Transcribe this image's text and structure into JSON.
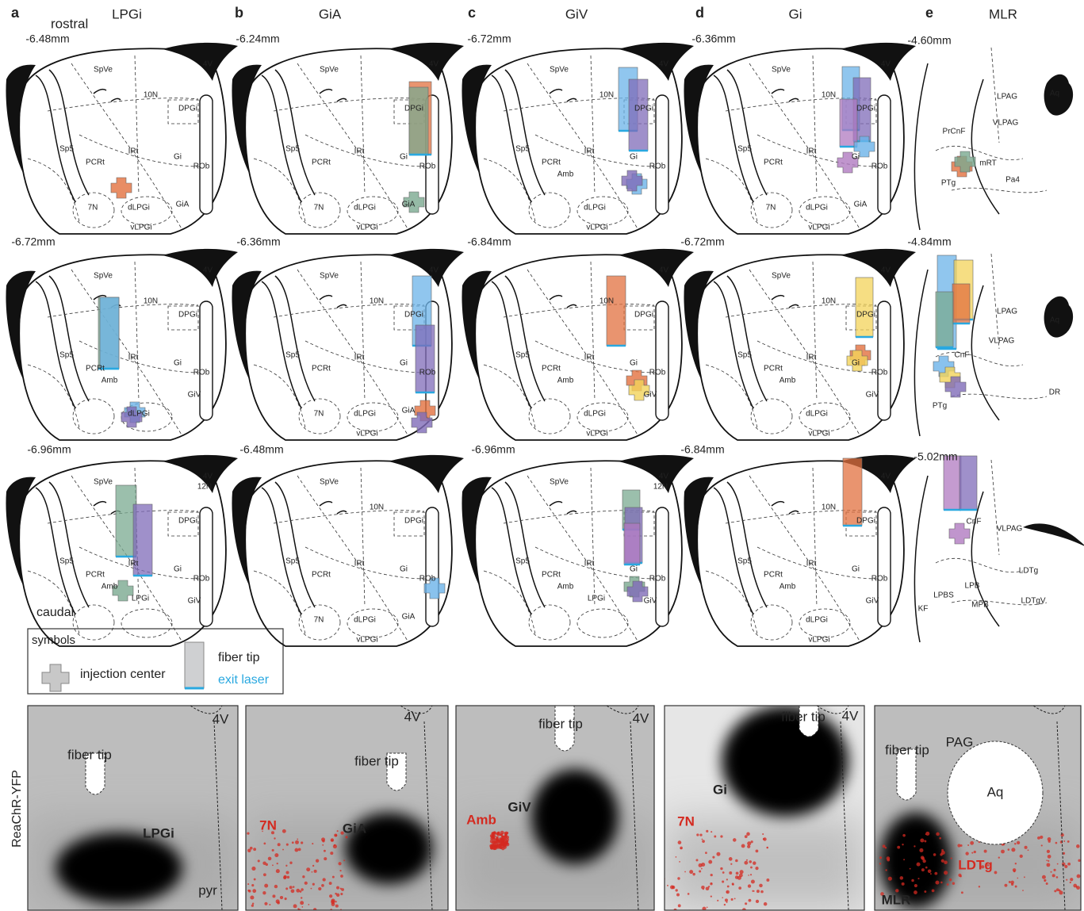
{
  "panels": [
    {
      "letter": "a",
      "title": "LPGi",
      "sections": [
        {
          "depth": "-6.48mm",
          "labels": [
            "SpVe",
            "10N",
            "DPGi",
            "Sp5",
            "PCRt",
            "IRt",
            "Gi",
            "ROb",
            "7N",
            "dLPGi",
            "vLPGi",
            "GiA",
            "4V"
          ]
        },
        {
          "depth": "-6.72mm",
          "labels": [
            "SpVe",
            "10N",
            "DPGi",
            "Sp5",
            "PCRt",
            "IRt",
            "Gi",
            "ROb",
            "dLPGi",
            "4V",
            "Amb",
            "GiV"
          ]
        },
        {
          "depth": "-6.96mm",
          "labels": [
            "SpVe",
            "12N",
            "DPGi",
            "Sp5",
            "PCRt",
            "IRt",
            "Gi",
            "ROb",
            "Amb",
            "GiV",
            "LPGi",
            "4V"
          ]
        }
      ]
    },
    {
      "letter": "b",
      "title": "GiA",
      "sections": [
        {
          "depth": "-6.24mm",
          "labels": [
            "SpVe",
            "DPGi",
            "Sp5",
            "PCRt",
            "IRt",
            "Gi",
            "ROb",
            "7N",
            "dLPGi",
            "vLPGi",
            "GiA",
            "4V"
          ]
        },
        {
          "depth": "-6.36mm",
          "labels": [
            "SpVe",
            "10N",
            "DPGi",
            "Sp5",
            "PCRt",
            "IRt",
            "Gi",
            "ROb",
            "7N",
            "dLPGi",
            "vLPGi",
            "GiA",
            "4V"
          ]
        },
        {
          "depth": "-6.48mm",
          "labels": [
            "SpVe",
            "10N",
            "DPGi",
            "Sp5",
            "PCRt",
            "IRt",
            "Gi",
            "ROb",
            "7N",
            "dLPGi",
            "vLPGi",
            "GiA"
          ]
        }
      ]
    },
    {
      "letter": "c",
      "title": "GiV",
      "sections": [
        {
          "depth": "-6.72mm",
          "labels": [
            "SpVe",
            "10N",
            "DPGi",
            "Sp5",
            "PCRt",
            "IRt",
            "Gi",
            "ROb",
            "Amb",
            "dLPGi",
            "vLPGi",
            "4V"
          ]
        },
        {
          "depth": "-6.84mm",
          "labels": [
            "10N",
            "DPGi",
            "Sp5",
            "PCRt",
            "IRt",
            "Gi",
            "ROb",
            "Amb",
            "dLPGi",
            "vLPGi",
            "GiV",
            "4V"
          ]
        },
        {
          "depth": "-6.96mm",
          "labels": [
            "SpVe",
            "12N",
            "Sp5",
            "PCRt",
            "IRt",
            "Gi",
            "ROb",
            "Amb",
            "LPGi",
            "GiV",
            "4V"
          ]
        }
      ]
    },
    {
      "letter": "d",
      "title": "Gi",
      "sections": [
        {
          "depth": "-6.36mm",
          "labels": [
            "SpVe",
            "10N",
            "DPGi",
            "Sp5",
            "PCRt",
            "IRt",
            "Gi",
            "ROb",
            "7N",
            "dLPGi",
            "vLPGi",
            "GiA",
            "4V"
          ]
        },
        {
          "depth": "-6.72mm",
          "labels": [
            "SpVe",
            "10N",
            "DPGi",
            "Sp5",
            "PCRt",
            "IRt",
            "Gi",
            "ROb",
            "Amb",
            "dLPGi",
            "vLPGi",
            "GiV",
            "4V"
          ]
        },
        {
          "depth": "-6.84mm",
          "labels": [
            "10N",
            "DPGi",
            "Sp5",
            "PCRt",
            "IRt",
            "Gi",
            "ROb",
            "Amb",
            "dLPGi",
            "vLPGi",
            "GiV",
            "4V"
          ]
        }
      ]
    },
    {
      "letter": "e",
      "title": "MLR",
      "sections": [
        {
          "depth": "-4.60mm",
          "labels": [
            "Aq",
            "LPAG",
            "VLPAG",
            "PrCnF",
            "mRT",
            "PTg",
            "Pa4"
          ]
        },
        {
          "depth": "-4.84mm",
          "labels": [
            "Aq",
            "LPAG",
            "VLPAG",
            "CnF",
            "PTg",
            "DR"
          ]
        },
        {
          "depth": "-5.02mm",
          "labels": [
            "CnF",
            "VLPAG",
            "LPBS",
            "LPB",
            "LDTg",
            "MPB",
            "LDTgV",
            "KF"
          ]
        }
      ]
    }
  ],
  "orientation": {
    "top": "rostral",
    "bottom": "caudal"
  },
  "legend": {
    "title": "symbols",
    "injection": "injection center",
    "fiber": "fiber tip",
    "laser": "exit laser"
  },
  "photos": {
    "stain": "ReaChR-YFP",
    "panels": [
      {
        "labels": [
          {
            "text": "4V"
          },
          {
            "text": "fiber tip"
          },
          {
            "text": "LPGi"
          },
          {
            "text": "pyr"
          }
        ]
      },
      {
        "labels": [
          {
            "text": "4V"
          },
          {
            "text": "fiber tip"
          },
          {
            "text": "7N",
            "color": "#d42a20"
          },
          {
            "text": "GiA"
          }
        ]
      },
      {
        "labels": [
          {
            "text": "fiber tip"
          },
          {
            "text": "4V"
          },
          {
            "text": "Amb",
            "color": "#d42a20"
          },
          {
            "text": "GiV"
          }
        ]
      },
      {
        "labels": [
          {
            "text": "fiber tip"
          },
          {
            "text": "4V"
          },
          {
            "text": "Gi"
          },
          {
            "text": "7N",
            "color": "#d42a20"
          }
        ]
      },
      {
        "labels": [
          {
            "text": "fiber tip"
          },
          {
            "text": "PAG"
          },
          {
            "text": "Aq"
          },
          {
            "text": "LDTg",
            "color": "#d42a20"
          },
          {
            "text": "MLR"
          }
        ]
      }
    ]
  }
}
